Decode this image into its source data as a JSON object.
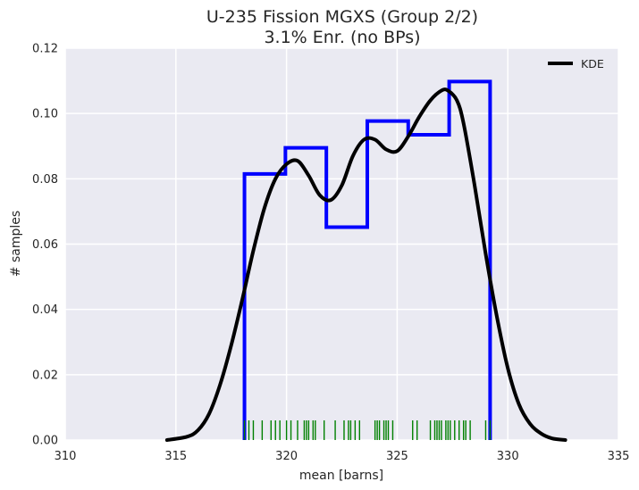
{
  "chart_data": {
    "type": "histogram",
    "title": "U-235 Fission MGXS (Group 2/2)",
    "subtitle": "3.1% Enr. (no BPs)",
    "xlabel": "mean [barns]",
    "ylabel": "# samples",
    "xlim": [
      310,
      335
    ],
    "ylim": [
      0,
      0.12
    ],
    "xticks": [
      "310",
      "315",
      "320",
      "325",
      "330",
      "335"
    ],
    "yticks": [
      "0.00",
      "0.02",
      "0.04",
      "0.06",
      "0.08",
      "0.10",
      "0.12"
    ],
    "grid": true,
    "legend": {
      "position": "top-right",
      "entries": [
        "KDE"
      ]
    },
    "colors": {
      "background": "#eaeaf2",
      "histogram": "#0000ff",
      "kde": "#000000",
      "rug": "#008000",
      "grid": "#ffffff"
    },
    "series": [
      {
        "kind": "histogram-step",
        "bin_edges": [
          318.1,
          319.95,
          321.8,
          323.65,
          325.5,
          327.35,
          329.2
        ],
        "densities": [
          0.0815,
          0.0895,
          0.0652,
          0.0977,
          0.0935,
          0.1098
        ]
      },
      {
        "kind": "kde-line",
        "name": "KDE",
        "x": [
          314.6,
          315.5,
          316.0,
          316.5,
          317.0,
          317.5,
          318.0,
          318.5,
          319.0,
          319.5,
          320.0,
          320.5,
          321.0,
          321.5,
          322.0,
          322.5,
          323.0,
          323.5,
          324.0,
          324.5,
          325.0,
          325.5,
          326.0,
          326.5,
          327.0,
          327.3,
          327.7,
          328.0,
          328.5,
          329.0,
          329.5,
          330.0,
          330.5,
          331.0,
          331.5,
          332.0,
          332.6
        ],
        "y": [
          0.0,
          0.001,
          0.003,
          0.008,
          0.017,
          0.029,
          0.043,
          0.058,
          0.071,
          0.08,
          0.0845,
          0.0855,
          0.081,
          0.075,
          0.0735,
          0.078,
          0.087,
          0.092,
          0.092,
          0.089,
          0.0885,
          0.093,
          0.099,
          0.104,
          0.107,
          0.107,
          0.104,
          0.097,
          0.078,
          0.057,
          0.038,
          0.022,
          0.011,
          0.005,
          0.002,
          0.0005,
          0.0
        ]
      },
      {
        "kind": "rug",
        "x": [
          318.1,
          318.3,
          318.5,
          318.9,
          319.3,
          319.5,
          319.7,
          320.0,
          320.2,
          320.5,
          320.8,
          320.9,
          321.0,
          321.2,
          321.3,
          321.7,
          322.2,
          322.6,
          322.8,
          322.9,
          323.1,
          323.3,
          324.0,
          324.1,
          324.2,
          324.4,
          324.5,
          324.6,
          324.8,
          325.7,
          325.9,
          326.5,
          326.7,
          326.8,
          326.9,
          327.0,
          327.2,
          327.3,
          327.4,
          327.6,
          327.8,
          328.0,
          328.1,
          328.3,
          329.0,
          329.2
        ]
      }
    ]
  }
}
